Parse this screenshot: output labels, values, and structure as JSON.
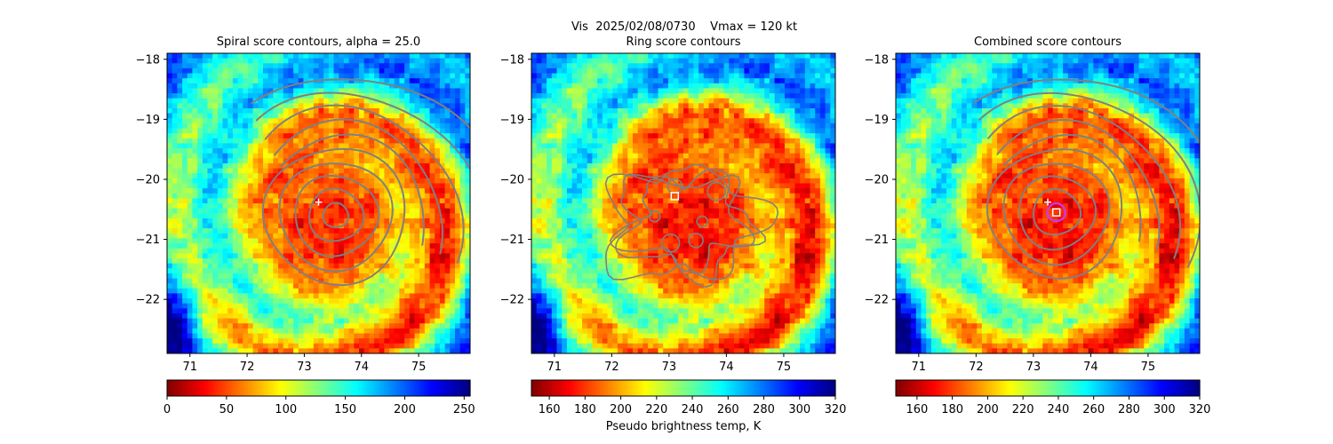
{
  "suptitle": "Vis  2025/02/08/0730    Vmax = 120 kt",
  "colorbar_label": "Pseudo brightness temp, K",
  "chart_data": [
    {
      "type": "heatmap",
      "title": "Spiral score contours, alpha = 25.0",
      "colormap": "jet_r",
      "xlim": [
        70.6,
        75.9
      ],
      "ylim": [
        -22.9,
        -17.9
      ],
      "xticks": [
        71,
        72,
        73,
        74,
        75
      ],
      "yticks": [
        -18,
        -19,
        -20,
        -21,
        -22
      ],
      "colorbar": {
        "range": [
          0,
          255
        ],
        "ticks": [
          0,
          50,
          100,
          150,
          200,
          250
        ]
      },
      "contours": "spiral",
      "contour_center": [
        73.55,
        -20.6
      ],
      "markers": [
        {
          "kind": "plus",
          "x": 73.25,
          "y": -20.38,
          "color": "#ffffff"
        }
      ]
    },
    {
      "type": "heatmap",
      "title": "Ring score contours",
      "colormap": "jet_r",
      "xlim": [
        70.6,
        75.9
      ],
      "ylim": [
        -22.9,
        -17.9
      ],
      "xticks": [
        71,
        72,
        73,
        74,
        75
      ],
      "yticks": [
        -18,
        -19,
        -20,
        -21,
        -22
      ],
      "colorbar": {
        "range": [
          150,
          320
        ],
        "ticks": [
          160,
          180,
          200,
          220,
          240,
          260,
          280,
          300,
          320
        ]
      },
      "contours": "ring",
      "contour_center": [
        73.3,
        -20.85
      ],
      "markers": [
        {
          "kind": "square",
          "x": 73.1,
          "y": -20.28,
          "color": "#ffffff"
        }
      ]
    },
    {
      "type": "heatmap",
      "title": "Combined score contours",
      "colormap": "jet_r",
      "xlim": [
        70.6,
        75.9
      ],
      "ylim": [
        -22.9,
        -17.9
      ],
      "xticks": [
        71,
        72,
        73,
        74,
        75
      ],
      "yticks": [
        -18,
        -19,
        -20,
        -21,
        -22
      ],
      "colorbar": {
        "range": [
          148,
          320
        ],
        "ticks": [
          160,
          180,
          200,
          220,
          240,
          260,
          280,
          300,
          320
        ]
      },
      "contours": "spiral",
      "contour_center": [
        73.4,
        -20.55
      ],
      "markers": [
        {
          "kind": "plus",
          "x": 73.25,
          "y": -20.38,
          "color": "#ffffff"
        },
        {
          "kind": "circle",
          "x": 73.4,
          "y": -20.55,
          "color": "#cc33ff"
        },
        {
          "kind": "square",
          "x": 73.4,
          "y": -20.55,
          "color": "#ffffff"
        }
      ]
    }
  ]
}
